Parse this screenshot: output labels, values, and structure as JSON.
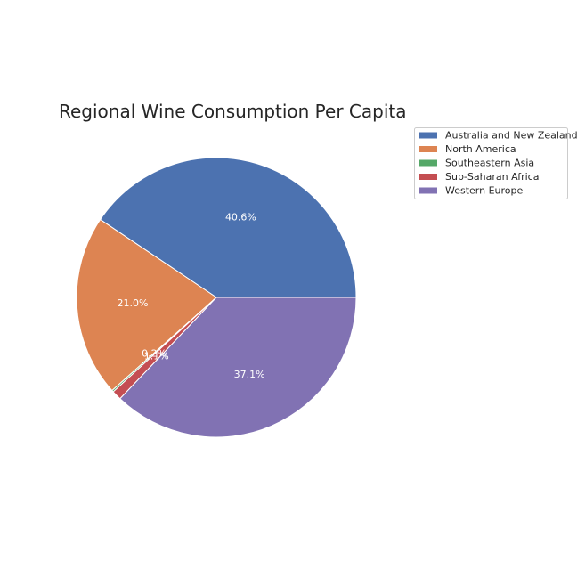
{
  "chart_data": {
    "type": "pie",
    "title": "Regional Wine Consumption Per Capita",
    "start_angle_deg": 0,
    "direction": "counterclockwise",
    "legend_position": "upper-right-outside",
    "slices": [
      {
        "label": "Australia and New Zealand",
        "percent": 40.6,
        "pct_label": "40.6%",
        "color": "#4c72b0"
      },
      {
        "label": "North America",
        "percent": 21.0,
        "pct_label": "21.0%",
        "color": "#dd8452"
      },
      {
        "label": "Southeastern Asia",
        "percent": 0.2,
        "pct_label": "0.2%",
        "color": "#55a868"
      },
      {
        "label": "Sub-Saharan Africa",
        "percent": 1.1,
        "pct_label": "1.1%",
        "color": "#c44e52"
      },
      {
        "label": "Western Europe",
        "percent": 37.1,
        "pct_label": "37.1%",
        "color": "#8172b3"
      }
    ]
  }
}
